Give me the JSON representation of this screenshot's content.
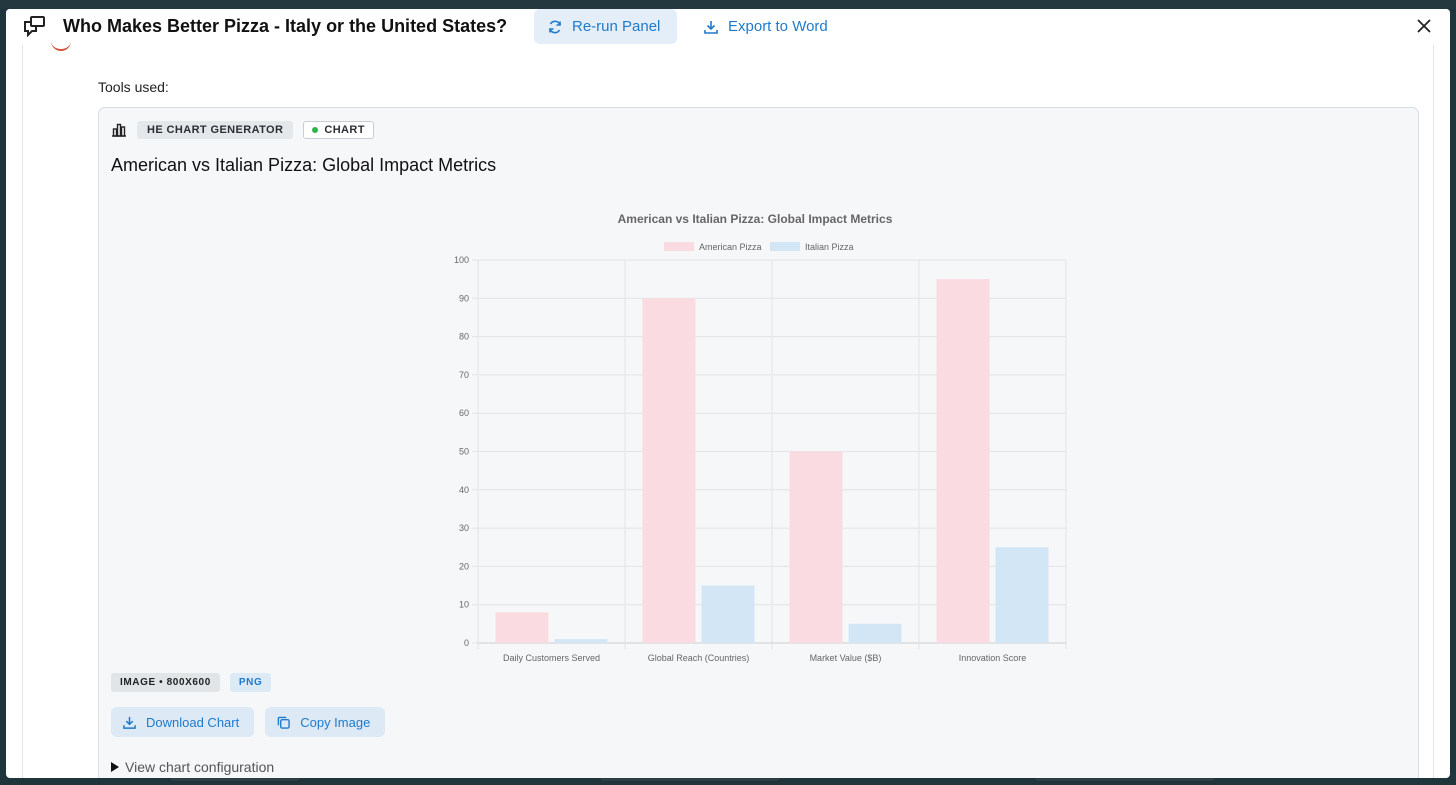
{
  "header": {
    "title": "Who Makes Better Pizza - Italy or the United States?",
    "rerun_label": "Re-run Panel",
    "export_label": "Export to Word"
  },
  "content": {
    "tools_used_label": "Tools used:"
  },
  "tool_card": {
    "tool_name": "HE CHART GENERATOR",
    "type_badge": "CHART",
    "title": "American vs Italian Pizza: Global Impact Metrics",
    "image_badge": "IMAGE • 800X600",
    "format_badge": "PNG",
    "download_label": "Download Chart",
    "copy_label": "Copy Image",
    "config_label": "View chart configuration"
  },
  "colors": {
    "accent": "#1f7acc",
    "american": "#fadbe1",
    "italian": "#d3e6f6"
  },
  "chart_data": {
    "type": "bar",
    "title": "American vs Italian Pizza: Global Impact Metrics",
    "categories": [
      "Daily Customers Served",
      "Global Reach (Countries)",
      "Market Value ($B)",
      "Innovation Score"
    ],
    "series": [
      {
        "name": "American Pizza",
        "values": [
          8,
          90,
          50,
          95
        ],
        "color": "#fadbe1"
      },
      {
        "name": "Italian Pizza",
        "values": [
          1,
          15,
          5,
          25
        ],
        "color": "#d3e6f6"
      }
    ],
    "ylim": [
      0,
      100
    ],
    "yticks": [
      0,
      10,
      20,
      30,
      40,
      50,
      60,
      70,
      80,
      90,
      100
    ],
    "legend": "top",
    "grid": true
  }
}
